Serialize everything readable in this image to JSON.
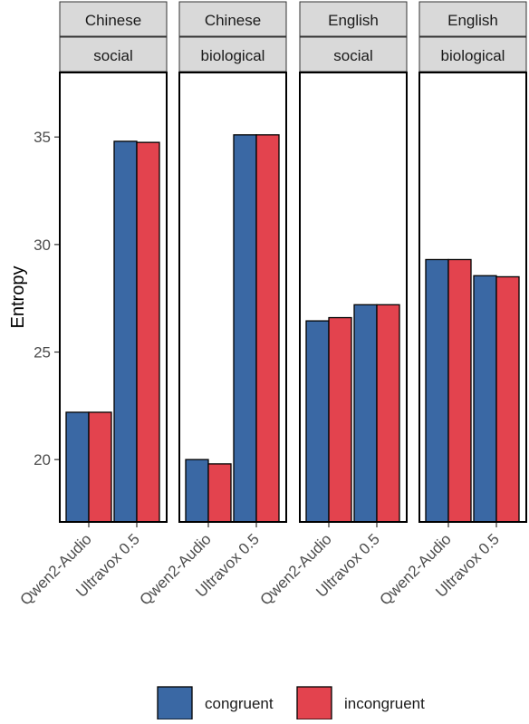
{
  "chart_data": {
    "type": "bar",
    "ylabel": "Entropy",
    "y_ticks": [
      20,
      25,
      30,
      35
    ],
    "ylim": [
      17.1,
      38.0
    ],
    "categories": [
      "Qwen2-Audio",
      "Ultravox 0.5"
    ],
    "series_names": [
      "congruent",
      "incongruent"
    ],
    "colors": {
      "congruent": "#3a68a4",
      "incongruent": "#e3434e"
    },
    "legend_position": "bottom",
    "grid": false,
    "panels": [
      {
        "strip_top": "Chinese",
        "strip_bottom": "social",
        "values": {
          "congruent": [
            22.2,
            34.8
          ],
          "incongruent": [
            22.2,
            34.75
          ]
        }
      },
      {
        "strip_top": "Chinese",
        "strip_bottom": "biological",
        "values": {
          "congruent": [
            20.0,
            35.1
          ],
          "incongruent": [
            19.8,
            35.1
          ]
        }
      },
      {
        "strip_top": "English",
        "strip_bottom": "social",
        "values": {
          "congruent": [
            26.45,
            27.2
          ],
          "incongruent": [
            26.6,
            27.2
          ]
        }
      },
      {
        "strip_top": "English",
        "strip_bottom": "biological",
        "values": {
          "congruent": [
            29.3,
            28.55
          ],
          "incongruent": [
            29.3,
            28.5
          ]
        }
      }
    ]
  }
}
